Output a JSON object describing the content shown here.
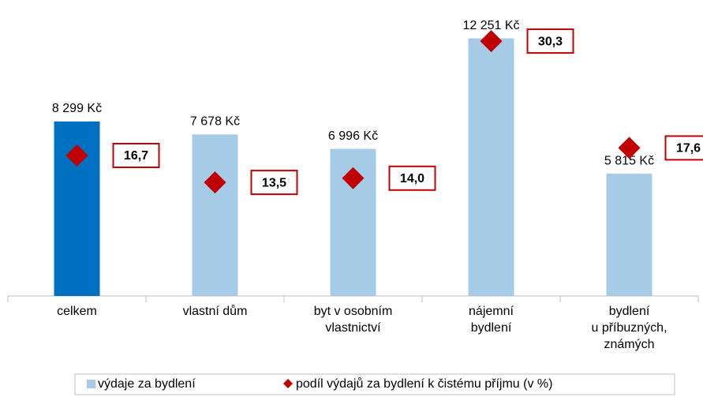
{
  "chart_data": {
    "type": "bar",
    "categories": [
      "celkem",
      "vlastní dům",
      "byt v osobním\nvlastnictví",
      "nájemní\nbydlení",
      "bydlení\nu příbuzných,\nznámých"
    ],
    "series": [
      {
        "name": "výdaje za bydlení",
        "color": "#a6cbe6",
        "colors": [
          "#0070c0",
          "#a6cbe6",
          "#a6cbe6",
          "#a6cbe6",
          "#a6cbe6"
        ],
        "values": [
          8299,
          7678,
          6996,
          12251,
          5815
        ],
        "value_labels": [
          "8 299 Kč",
          "7 678 Kč",
          "6 996 Kč",
          "12 251 Kč",
          "5 815 Kč"
        ]
      },
      {
        "name": "podíl výdajů za bydlení k čistému příjmu (v %)",
        "color": "#c00000",
        "axis": "y2",
        "values": [
          16.7,
          13.5,
          14.0,
          30.3,
          17.6
        ],
        "value_labels": [
          "16,7",
          "13,5",
          "14,0",
          "30,3",
          "17,6"
        ]
      }
    ],
    "ylim": [
      0,
      14000
    ],
    "y2lim": [
      0,
      35
    ]
  }
}
